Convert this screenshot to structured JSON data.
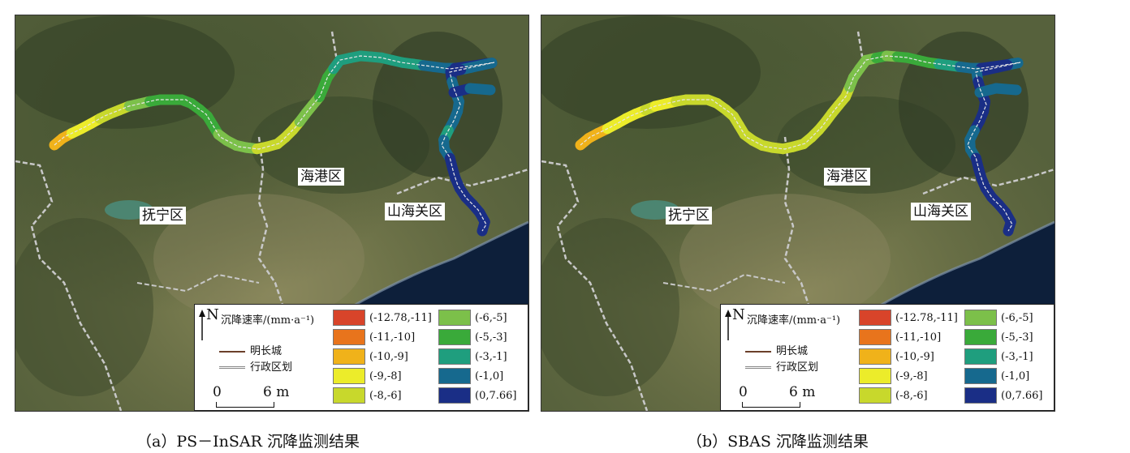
{
  "panels": [
    {
      "caption": "（a）PS－InSAR 沉降监测结果",
      "places": {
        "funing": "抚宁区",
        "haigang": "海港区",
        "shanhaiguan": "山海关区"
      },
      "legend": {
        "north": "N",
        "rate_title": "沉降速率/(mm·a⁻¹)",
        "great_wall": "明长城",
        "boundary": "行政区划",
        "scale_start": "0",
        "scale_end": "6 m"
      },
      "segment_classes": [
        7,
        7,
        6,
        6,
        6,
        5,
        5,
        5,
        4,
        4,
        3,
        3,
        3,
        3,
        3,
        3,
        3,
        3,
        4,
        4,
        4,
        4,
        5,
        5,
        5,
        5,
        5,
        4,
        4,
        4,
        3,
        3,
        3,
        2,
        2,
        2,
        2,
        2,
        2,
        2,
        2,
        2,
        1,
        1,
        1,
        0,
        0,
        0,
        0,
        1,
        1,
        1,
        0,
        0,
        1,
        1,
        1,
        1,
        1,
        2,
        1,
        1,
        0,
        0,
        0,
        0,
        0,
        0,
        0,
        0,
        0,
        1,
        2
      ]
    },
    {
      "caption": "（b）SBAS 沉降监测结果",
      "places": {
        "funing": "抚宁区",
        "haigang": "海港区",
        "shanhaiguan": "山海关区"
      },
      "legend": {
        "north": "N",
        "rate_title": "沉降速率/(mm·a⁻¹)",
        "great_wall": "明长城",
        "boundary": "行政区划",
        "scale_start": "0",
        "scale_end": "6 m"
      },
      "segment_classes": [
        7,
        7,
        7,
        6,
        6,
        6,
        6,
        5,
        6,
        6,
        5,
        5,
        5,
        5,
        5,
        5,
        5,
        5,
        5,
        5,
        5,
        5,
        5,
        5,
        5,
        5,
        5,
        5,
        5,
        5,
        5,
        4,
        4,
        4,
        4,
        3,
        4,
        3,
        3,
        3,
        3,
        2,
        2,
        1,
        1,
        0,
        0,
        0,
        1,
        1,
        0,
        0,
        0,
        1,
        0,
        0,
        0,
        0,
        0,
        1,
        1,
        1,
        0,
        0,
        0,
        0,
        0,
        0,
        0,
        0,
        1,
        1,
        1
      ]
    }
  ],
  "legend_classes": [
    {
      "label": "(-12.78,-11]",
      "color": "#d8442a"
    },
    {
      "label": "(-11,-10]",
      "color": "#e8741c"
    },
    {
      "label": "(-10,-9]",
      "color": "#f0b21a"
    },
    {
      "label": "(-9,-8]",
      "color": "#ecec2a"
    },
    {
      "label": "(-8,-6]",
      "color": "#c8d82c"
    },
    {
      "label": "(-6,-5]",
      "color": "#7cc04a"
    },
    {
      "label": "(-5,-3]",
      "color": "#3aaa3a"
    },
    {
      "label": "(-3,-1]",
      "color": "#1f9e7e"
    },
    {
      "label": "(-1,0]",
      "color": "#16698e"
    },
    {
      "label": "(0,7.66]",
      "color": "#1a2e86"
    }
  ],
  "wall_path": [
    [
      48,
      160
    ],
    [
      60,
      150
    ],
    [
      85,
      138
    ],
    [
      110,
      124
    ],
    [
      140,
      112
    ],
    [
      175,
      104
    ],
    [
      210,
      104
    ],
    [
      235,
      122
    ],
    [
      252,
      150
    ],
    [
      275,
      162
    ],
    [
      300,
      165
    ],
    [
      325,
      158
    ],
    [
      345,
      138
    ],
    [
      360,
      118
    ],
    [
      375,
      100
    ],
    [
      385,
      75
    ],
    [
      400,
      55
    ],
    [
      425,
      50
    ],
    [
      450,
      52
    ],
    [
      475,
      58
    ],
    [
      505,
      62
    ],
    [
      535,
      66
    ],
    [
      565,
      62
    ],
    [
      590,
      58
    ],
    [
      535,
      70
    ],
    [
      540,
      90
    ],
    [
      548,
      110
    ],
    [
      540,
      130
    ],
    [
      530,
      148
    ],
    [
      525,
      160
    ],
    [
      535,
      175
    ],
    [
      540,
      195
    ],
    [
      545,
      210
    ],
    [
      555,
      225
    ],
    [
      570,
      240
    ],
    [
      580,
      258
    ],
    [
      575,
      266
    ],
    [
      540,
      95
    ],
    [
      560,
      90
    ],
    [
      585,
      92
    ]
  ]
}
